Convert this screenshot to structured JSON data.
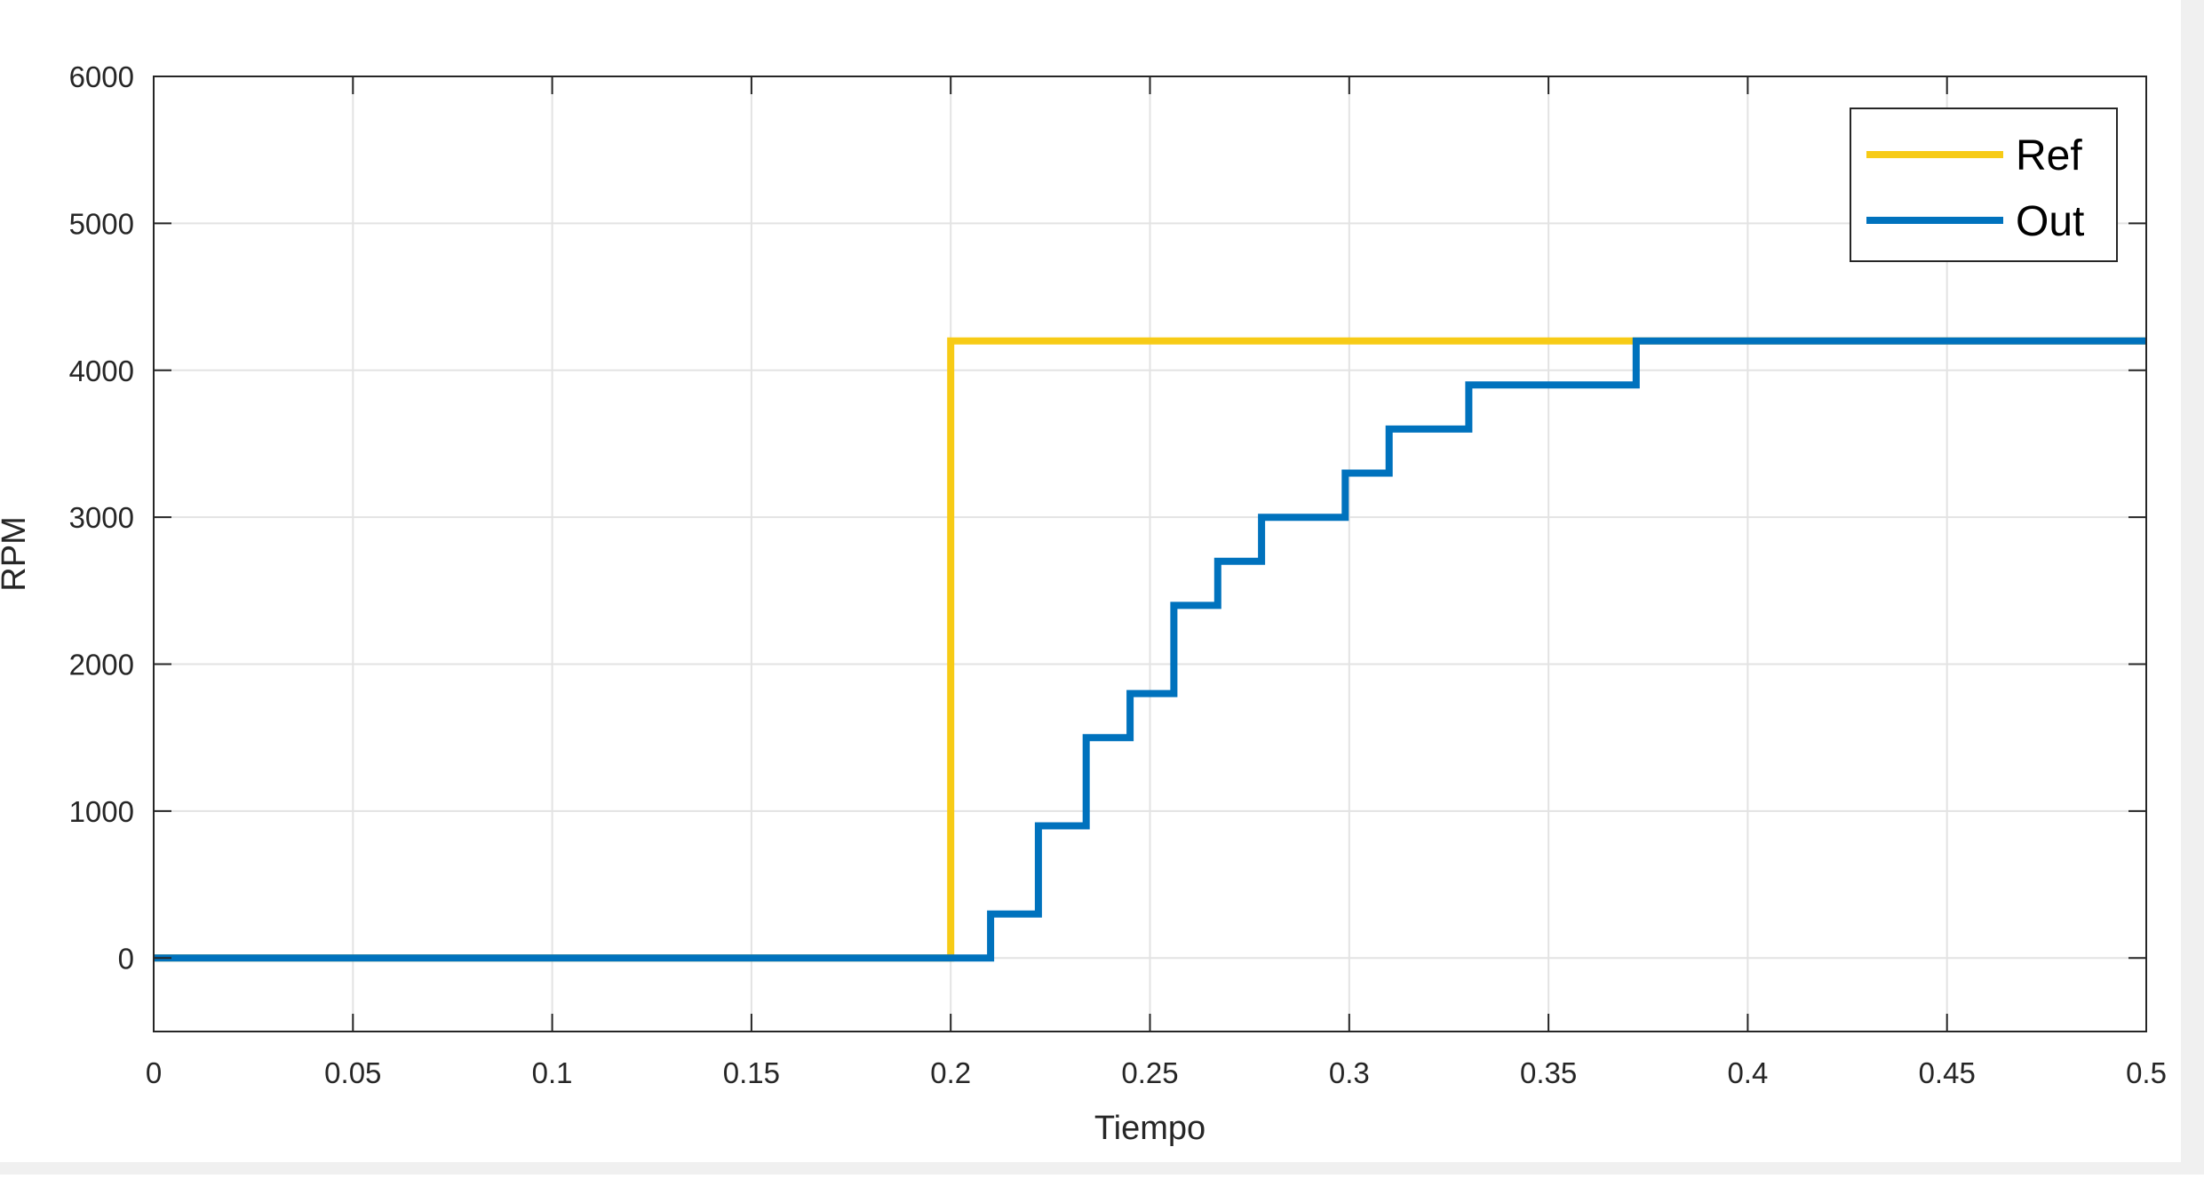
{
  "chart_data": {
    "type": "line",
    "title": "",
    "xlabel": "Tiempo",
    "ylabel": "RPM",
    "xlim": [
      0,
      0.5
    ],
    "ylim": [
      -500,
      6000
    ],
    "xticks": [
      0,
      0.05,
      0.1,
      0.15,
      0.2,
      0.25,
      0.3,
      0.35,
      0.4,
      0.45,
      0.5
    ],
    "xtick_labels": [
      "0",
      "0.05",
      "0.1",
      "0.15",
      "0.2",
      "0.25",
      "0.3",
      "0.35",
      "0.4",
      "0.45",
      "0.5"
    ],
    "yticks": [
      0,
      1000,
      2000,
      3000,
      4000,
      5000,
      6000
    ],
    "ytick_labels": [
      "0",
      "1000",
      "2000",
      "3000",
      "4000",
      "5000",
      "6000"
    ],
    "grid": true,
    "legend_position": "top-right",
    "series": [
      {
        "name": "Ref",
        "color": "#f7cb16",
        "step": true,
        "points": [
          [
            0,
            0
          ],
          [
            0.2,
            0
          ],
          [
            0.2,
            4200
          ],
          [
            0.5,
            4200
          ]
        ]
      },
      {
        "name": "Out",
        "color": "#0072bd",
        "step": true,
        "points": [
          [
            0,
            0
          ],
          [
            0.21,
            0
          ],
          [
            0.21,
            300
          ],
          [
            0.222,
            300
          ],
          [
            0.222,
            900
          ],
          [
            0.234,
            900
          ],
          [
            0.234,
            1500
          ],
          [
            0.245,
            1500
          ],
          [
            0.245,
            1800
          ],
          [
            0.256,
            1800
          ],
          [
            0.256,
            2400
          ],
          [
            0.267,
            2400
          ],
          [
            0.267,
            2700
          ],
          [
            0.278,
            2700
          ],
          [
            0.278,
            3000
          ],
          [
            0.299,
            3000
          ],
          [
            0.299,
            3300
          ],
          [
            0.31,
            3300
          ],
          [
            0.31,
            3600
          ],
          [
            0.33,
            3600
          ],
          [
            0.33,
            3900
          ],
          [
            0.372,
            3900
          ],
          [
            0.372,
            4200
          ],
          [
            0.5,
            4200
          ]
        ]
      }
    ]
  }
}
